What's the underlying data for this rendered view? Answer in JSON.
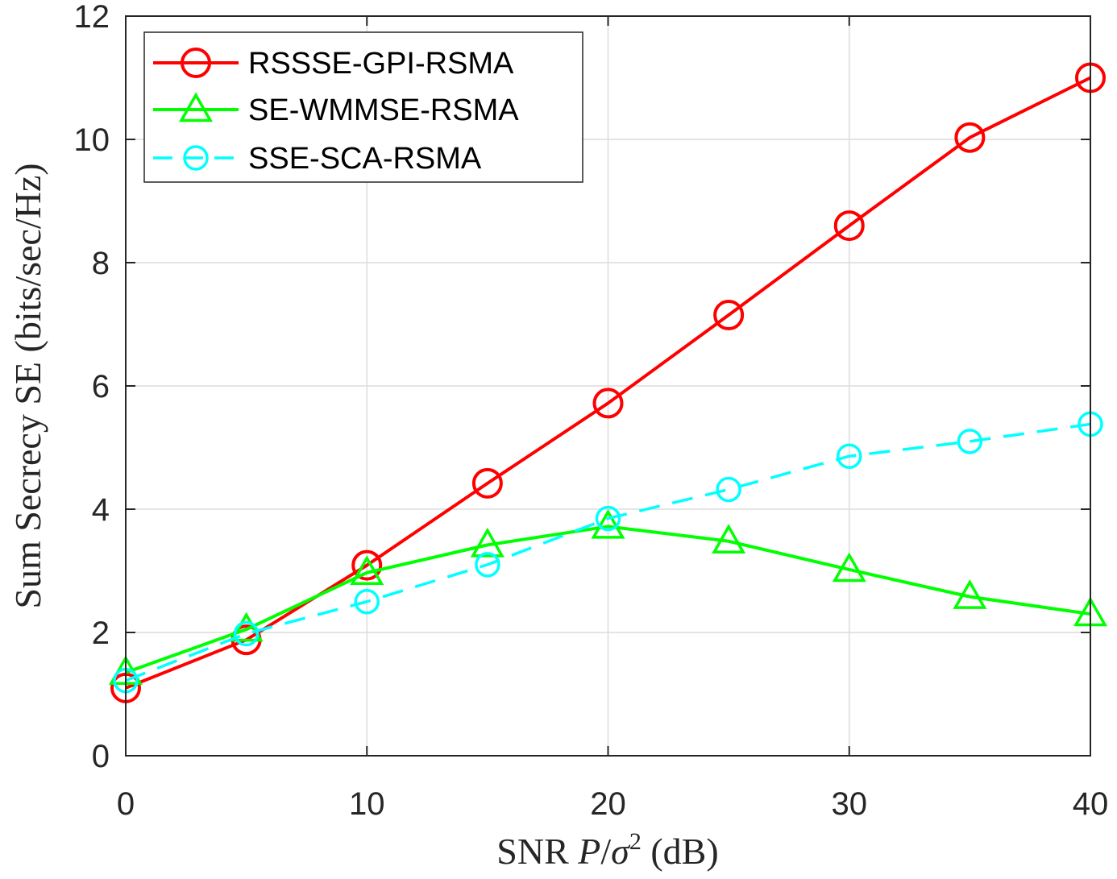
{
  "chart_data": {
    "type": "line",
    "title": "",
    "xlabel": {
      "prefix": "SNR ",
      "var_p": "P",
      "slash": "/",
      "var_sigma": "σ",
      "exponent": "2",
      "unit": " (dB)"
    },
    "ylabel": "Sum Secrecy SE (bits/sec/Hz)",
    "x": [
      0,
      5,
      10,
      15,
      20,
      25,
      30,
      35,
      40
    ],
    "xlim": [
      0,
      40
    ],
    "ylim": [
      0,
      12
    ],
    "xticks": [
      0,
      10,
      20,
      30,
      40
    ],
    "yticks": [
      0,
      2,
      4,
      6,
      8,
      10,
      12
    ],
    "grid": true,
    "legend_position": "top-left",
    "series": [
      {
        "name": "RSSSE-GPI-RSMA",
        "color": "#ff0000",
        "marker": "circle",
        "line": "solid",
        "values": [
          1.1,
          1.88,
          3.09,
          4.42,
          5.72,
          7.15,
          8.6,
          10.03,
          11.0
        ]
      },
      {
        "name": "SE-WMMSE-RSMA",
        "color": "#00ff00",
        "marker": "triangle",
        "line": "solid",
        "values": [
          1.35,
          2.05,
          2.97,
          3.42,
          3.72,
          3.48,
          3.02,
          2.58,
          2.3
        ]
      },
      {
        "name": "SSE-SCA-RSMA",
        "color": "#00ffff",
        "marker": "circle-small",
        "line": "dashed",
        "values": [
          1.22,
          1.98,
          2.5,
          3.1,
          3.85,
          4.32,
          4.86,
          5.1,
          5.38
        ]
      }
    ]
  }
}
